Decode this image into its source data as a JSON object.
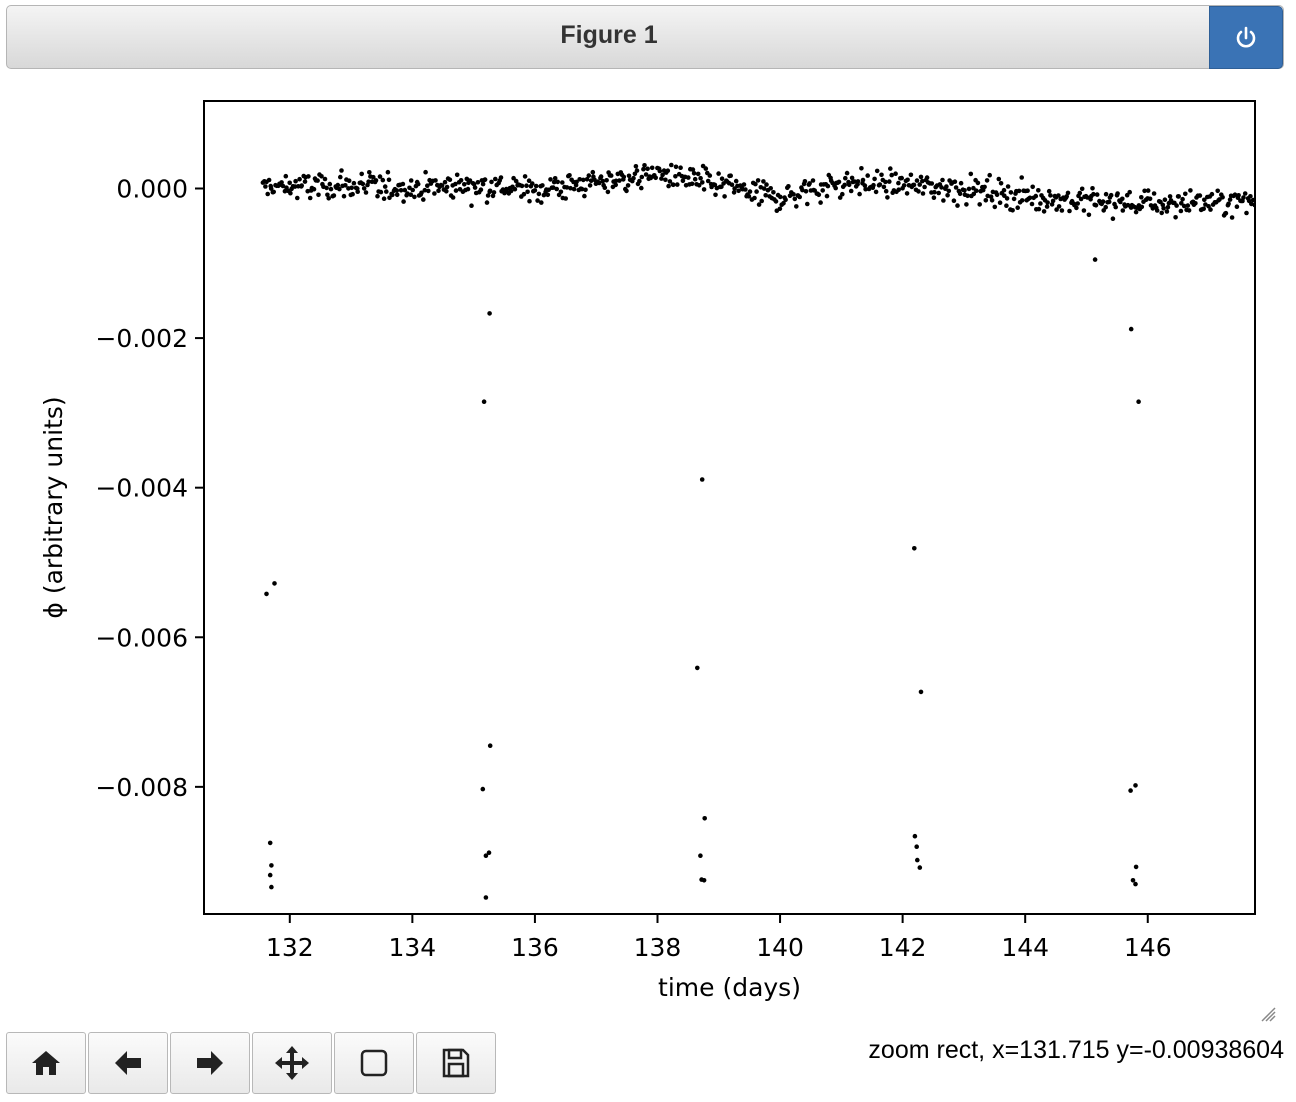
{
  "window": {
    "title": "Figure 1"
  },
  "toolbar": {
    "buttons": [
      {
        "name": "home",
        "icon": "home-icon"
      },
      {
        "name": "back",
        "icon": "arrow-left-icon"
      },
      {
        "name": "forward",
        "icon": "arrow-right-icon"
      },
      {
        "name": "pan",
        "icon": "move-icon"
      },
      {
        "name": "zoom",
        "icon": "square-icon"
      },
      {
        "name": "save",
        "icon": "floppy-icon"
      }
    ]
  },
  "status": {
    "text": "zoom rect, x=131.715 y=-0.00938604"
  },
  "chart_data": {
    "type": "scatter",
    "xlabel": "time (days)",
    "ylabel": "ϕ (arbitrary units)",
    "xlim": [
      130.6,
      147.75
    ],
    "ylim": [
      -0.0097,
      0.00117
    ],
    "xticks": [
      132,
      134,
      136,
      138,
      140,
      142,
      144,
      146
    ],
    "xtick_labels": [
      "132",
      "134",
      "136",
      "138",
      "140",
      "142",
      "144",
      "146"
    ],
    "yticks": [
      0.0,
      -0.002,
      -0.004,
      -0.006,
      -0.008
    ],
    "ytick_labels": [
      "0.000",
      "−0.002",
      "−0.004",
      "−0.006",
      "−0.008"
    ],
    "marker_color": "#000000",
    "outlier_points": [
      [
        131.62,
        -0.00542
      ],
      [
        131.75,
        -0.00528
      ],
      [
        131.68,
        -0.00875
      ],
      [
        131.7,
        -0.00905
      ],
      [
        131.68,
        -0.00918
      ],
      [
        131.7,
        -0.00934
      ],
      [
        135.17,
        -0.00285
      ],
      [
        135.26,
        -0.00167
      ],
      [
        135.27,
        -0.00745
      ],
      [
        135.15,
        -0.00803
      ],
      [
        135.2,
        -0.00892
      ],
      [
        135.25,
        -0.00888
      ],
      [
        135.2,
        -0.00948
      ],
      [
        138.73,
        -0.00389
      ],
      [
        138.65,
        -0.00641
      ],
      [
        138.77,
        -0.00842
      ],
      [
        138.7,
        -0.00892
      ],
      [
        138.72,
        -0.00924
      ],
      [
        138.76,
        -0.00925
      ],
      [
        142.19,
        -0.00481
      ],
      [
        142.3,
        -0.00673
      ],
      [
        142.2,
        -0.00866
      ],
      [
        142.23,
        -0.0088
      ],
      [
        142.24,
        -0.00898
      ],
      [
        142.28,
        -0.00908
      ],
      [
        145.73,
        -0.00188
      ],
      [
        145.85,
        -0.00285
      ],
      [
        145.72,
        -0.00805
      ],
      [
        145.8,
        -0.00798
      ],
      [
        145.81,
        -0.00907
      ],
      [
        145.76,
        -0.00925
      ],
      [
        145.8,
        -0.0093
      ],
      [
        145.14,
        -0.00095
      ]
    ],
    "cluster": {
      "x_start": 131.55,
      "x_end": 147.75,
      "count": 780,
      "description_points": "dense band of points around 0.000 with spread about ±0.0004",
      "level_profile": [
        [
          131.6,
          2e-05
        ],
        [
          133.0,
          3e-05
        ],
        [
          134.0,
          1e-05
        ],
        [
          135.0,
          5e-05
        ],
        [
          136.0,
          -2e-05
        ],
        [
          137.0,
          8e-05
        ],
        [
          138.0,
          0.0002
        ],
        [
          139.0,
          5e-05
        ],
        [
          140.0,
          -0.00012
        ],
        [
          141.0,
          8e-05
        ],
        [
          142.0,
          5e-05
        ],
        [
          143.0,
          0.0
        ],
        [
          144.0,
          -0.0001
        ],
        [
          145.0,
          -0.00018
        ],
        [
          146.0,
          -0.0002
        ],
        [
          147.7,
          -0.00018
        ]
      ],
      "spread": 0.00018
    }
  }
}
